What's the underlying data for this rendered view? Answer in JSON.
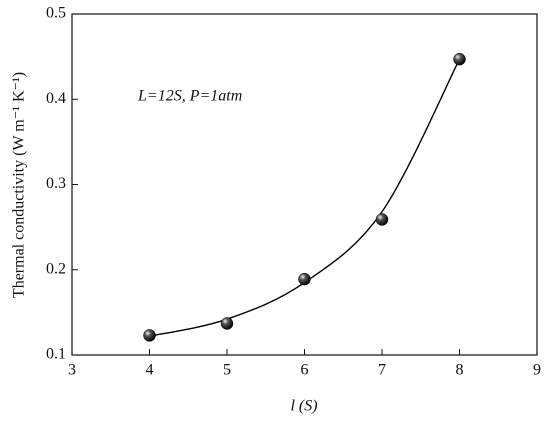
{
  "chart_data": {
    "type": "scatter",
    "x": [
      4,
      5,
      6,
      7,
      8
    ],
    "series": [
      {
        "style": "markers",
        "color": "#000000",
        "values": [
          0.123,
          0.137,
          0.189,
          0.259,
          0.447
        ]
      },
      {
        "style": "curve",
        "color": "#000000",
        "values": [
          0.122,
          0.142,
          0.185,
          0.268,
          0.447
        ]
      }
    ],
    "xlim": [
      3,
      9
    ],
    "xticks": [
      3,
      4,
      5,
      6,
      7,
      8,
      9
    ],
    "ylim": [
      0.1,
      0.5
    ],
    "yticks": [
      0.1,
      0.2,
      0.3,
      0.4,
      0.5
    ],
    "x_label": "l (S)",
    "y_label": "Thermal conductivity (W m⁻¹ K⁻¹)",
    "annotation": "L=12S, P=1atm",
    "grid": false
  }
}
